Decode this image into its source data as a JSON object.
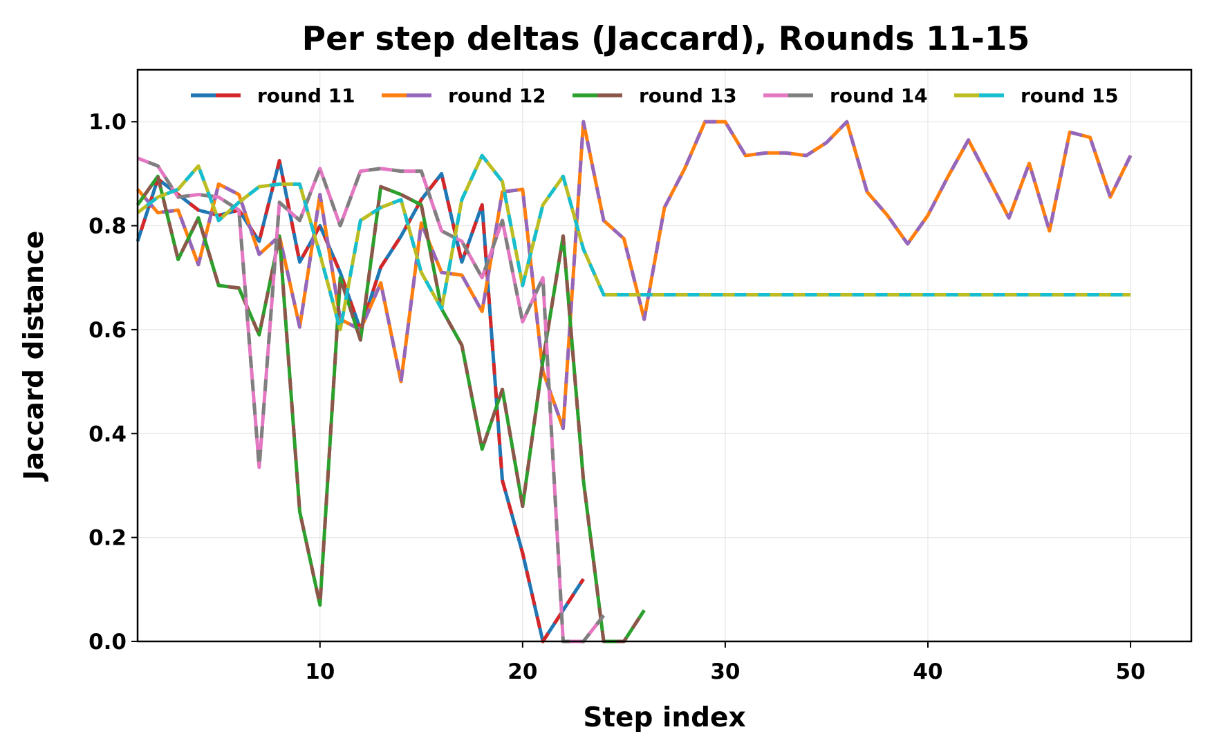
{
  "chart_data": {
    "type": "line",
    "title": "Per step deltas (Jaccard), Rounds 11-15",
    "xlabel": "Step index",
    "ylabel": "Jaccard distance",
    "xlim": [
      1,
      53
    ],
    "ylim": [
      0,
      1.1
    ],
    "xticks": [
      10,
      20,
      30,
      40,
      50
    ],
    "xtick_labels": [
      "10",
      "20",
      "30",
      "40",
      "50"
    ],
    "yticks": [
      0.0,
      0.2,
      0.4,
      0.6,
      0.8,
      1.0
    ],
    "ytick_labels": [
      "0.0",
      "0.2",
      "0.4",
      "0.6",
      "0.8",
      "1.0"
    ],
    "grid": true,
    "legend_position": "top-center",
    "series": [
      {
        "name": "round 11",
        "colors": [
          "#1f77b4",
          "#d62728"
        ],
        "x": [
          1,
          2,
          3,
          4,
          5,
          6,
          7,
          8,
          9,
          10,
          11,
          12,
          13,
          14,
          15,
          16,
          17,
          18,
          19,
          20,
          21,
          22,
          23
        ],
        "y": [
          0.77,
          0.89,
          0.86,
          0.83,
          0.82,
          0.83,
          0.77,
          0.925,
          0.73,
          0.8,
          0.71,
          0.6,
          0.72,
          0.78,
          0.85,
          0.9,
          0.73,
          0.84,
          0.31,
          0.17,
          0.0,
          0.06,
          0.12
        ]
      },
      {
        "name": "round 12",
        "colors": [
          "#ff7f0e",
          "#9467bd"
        ],
        "x": [
          1,
          2,
          3,
          4,
          5,
          6,
          7,
          8,
          9,
          10,
          11,
          12,
          13,
          14,
          15,
          16,
          17,
          18,
          19,
          20,
          21,
          22,
          23,
          24,
          25,
          26,
          27,
          28,
          29,
          30,
          31,
          32,
          33,
          34,
          35,
          36,
          37,
          38,
          39,
          40,
          41,
          42,
          43,
          44,
          45,
          46,
          47,
          48,
          49,
          50
        ],
        "y": [
          0.87,
          0.825,
          0.83,
          0.725,
          0.88,
          0.86,
          0.745,
          0.78,
          0.605,
          0.86,
          0.62,
          0.6,
          0.69,
          0.5,
          0.805,
          0.71,
          0.705,
          0.635,
          0.865,
          0.87,
          0.52,
          0.41,
          1.0,
          0.81,
          0.775,
          0.62,
          0.835,
          0.91,
          1.0,
          1.0,
          0.935,
          0.94,
          0.94,
          0.935,
          0.96,
          1.0,
          0.865,
          0.82,
          0.765,
          0.82,
          0.895,
          0.965,
          0.89,
          0.815,
          0.92,
          0.79,
          0.98,
          0.97,
          0.855,
          0.935
        ]
      },
      {
        "name": "round 13",
        "colors": [
          "#2ca02c",
          "#8c564b"
        ],
        "x": [
          1,
          2,
          3,
          4,
          5,
          6,
          7,
          8,
          9,
          10,
          11,
          12,
          13,
          14,
          15,
          16,
          17,
          18,
          19,
          20,
          21,
          22,
          23,
          24,
          25,
          26
        ],
        "y": [
          0.84,
          0.895,
          0.735,
          0.815,
          0.685,
          0.68,
          0.59,
          0.78,
          0.25,
          0.07,
          0.7,
          0.58,
          0.875,
          0.86,
          0.84,
          0.64,
          0.57,
          0.37,
          0.485,
          0.26,
          0.54,
          0.78,
          0.31,
          0.0,
          0.0,
          0.06
        ]
      },
      {
        "name": "round 14",
        "colors": [
          "#e377c2",
          "#7f7f7f"
        ],
        "x": [
          1,
          2,
          3,
          4,
          5,
          6,
          7,
          8,
          9,
          10,
          11,
          12,
          13,
          14,
          15,
          16,
          17,
          18,
          19,
          20,
          21,
          22,
          23,
          24
        ],
        "y": [
          0.93,
          0.915,
          0.855,
          0.86,
          0.855,
          0.83,
          0.335,
          0.845,
          0.81,
          0.91,
          0.8,
          0.905,
          0.91,
          0.905,
          0.905,
          0.79,
          0.77,
          0.7,
          0.81,
          0.615,
          0.7,
          0.0,
          0.0,
          0.05
        ]
      },
      {
        "name": "round 15",
        "colors": [
          "#bcbd22",
          "#17becf"
        ],
        "x": [
          1,
          2,
          3,
          4,
          5,
          6,
          7,
          8,
          9,
          10,
          11,
          12,
          13,
          14,
          15,
          16,
          17,
          18,
          19,
          20,
          21,
          22,
          23,
          24,
          25,
          26,
          27,
          28,
          29,
          30,
          31,
          32,
          33,
          34,
          35,
          36,
          37,
          38,
          39,
          40,
          41,
          42,
          43,
          44,
          45,
          46,
          47,
          48,
          49,
          50
        ],
        "y": [
          0.825,
          0.855,
          0.87,
          0.915,
          0.81,
          0.845,
          0.875,
          0.88,
          0.88,
          0.745,
          0.6,
          0.81,
          0.835,
          0.85,
          0.71,
          0.64,
          0.85,
          0.935,
          0.885,
          0.685,
          0.84,
          0.895,
          0.755,
          0.667,
          0.667,
          0.667,
          0.667,
          0.667,
          0.667,
          0.667,
          0.667,
          0.667,
          0.667,
          0.667,
          0.667,
          0.667,
          0.667,
          0.667,
          0.667,
          0.667,
          0.667,
          0.667,
          0.667,
          0.667,
          0.667,
          0.667,
          0.667,
          0.667,
          0.667,
          0.667
        ]
      }
    ]
  }
}
